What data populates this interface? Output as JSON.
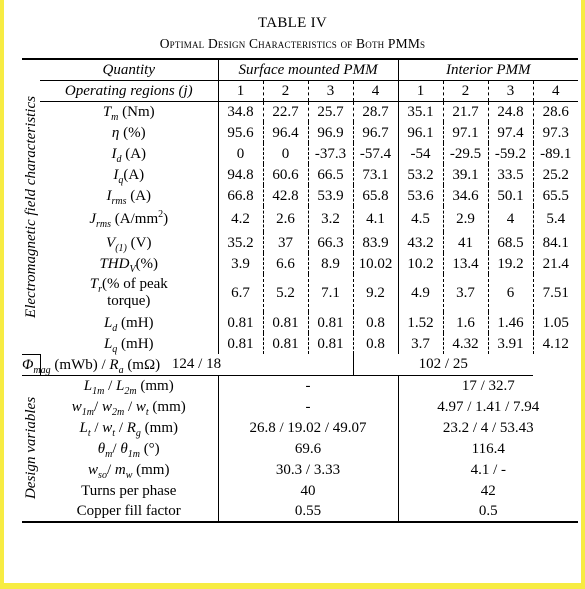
{
  "table": {
    "title": "TABLE IV",
    "caption": "Optimal Design Characteristics of Both PMMs",
    "header": {
      "quantity": "Quantity",
      "surface": "Surface mounted PMM",
      "interior": "Interior PMM",
      "regions_label": "Operating regions (j)",
      "regions": [
        "1",
        "2",
        "3",
        "4",
        "1",
        "2",
        "3",
        "4"
      ]
    },
    "sections": {
      "em": "Electromagnetic field characteristics",
      "dv": "Design variables"
    },
    "em_rows": [
      {
        "v": [
          "34.8",
          "22.7",
          "25.7",
          "28.7",
          "35.1",
          "21.7",
          "24.8",
          "28.6"
        ]
      },
      {
        "v": [
          "95.6",
          "96.4",
          "96.9",
          "96.7",
          "96.1",
          "97.1",
          "97.4",
          "97.3"
        ]
      },
      {
        "v": [
          "0",
          "0",
          "-37.3",
          "-57.4",
          "-54",
          "-29.5",
          "-59.2",
          "-89.1"
        ]
      },
      {
        "v": [
          "94.8",
          "60.6",
          "66.5",
          "73.1",
          "53.2",
          "39.1",
          "33.5",
          "25.2"
        ]
      },
      {
        "v": [
          "66.8",
          "42.8",
          "53.9",
          "65.8",
          "53.6",
          "34.6",
          "50.1",
          "65.5"
        ]
      },
      {
        "v": [
          "4.2",
          "2.6",
          "3.2",
          "4.1",
          "4.5",
          "2.9",
          "4",
          "5.4"
        ]
      },
      {
        "v": [
          "35.2",
          "37",
          "66.3",
          "83.9",
          "43.2",
          "41",
          "68.5",
          "84.1"
        ]
      },
      {
        "v": [
          "3.9",
          "6.6",
          "8.9",
          "10.02",
          "10.2",
          "13.4",
          "19.2",
          "21.4"
        ]
      },
      {
        "v": [
          "6.7",
          "5.2",
          "7.1",
          "9.2",
          "4.9",
          "3.7",
          "6",
          "7.51"
        ]
      },
      {
        "v": [
          "0.81",
          "0.81",
          "0.81",
          "0.8",
          "1.52",
          "1.6",
          "1.46",
          "1.05"
        ]
      },
      {
        "v": [
          "0.81",
          "0.81",
          "0.81",
          "0.8",
          "3.7",
          "4.32",
          "3.91",
          "4.12"
        ]
      }
    ],
    "labels": {
      "tm": {
        "sym": "T",
        "sub": "m",
        "unit": " (Nm)"
      },
      "eta": {
        "sym": "η",
        "unit": " (%)"
      },
      "id": {
        "sym": "I",
        "sub": "d",
        "unit": " (A)"
      },
      "iq": {
        "sym": "I",
        "sub": "q",
        "unit": "(A)"
      },
      "irms": {
        "sym": "I",
        "sub": "rms",
        "unit": " (A)"
      },
      "jrms": {
        "sym": "J",
        "sub": "rms",
        "unit": " (A/mm",
        "sup": "2",
        "close": ")"
      },
      "v1": {
        "sym": "V",
        "sub": "(1)",
        "unit": " (V)"
      },
      "thd": {
        "sym": "THD",
        "sub": "V",
        "unit": "(%)"
      },
      "tr_line1": {
        "sym": "T",
        "sub": "r",
        "unit": "(% of peak"
      },
      "tr_line2": "torque)",
      "ld": {
        "sym": "L",
        "sub": "d",
        "unit": " (mH)"
      },
      "lq": {
        "sym": "L",
        "sub": "q",
        "unit": " (mH)"
      },
      "phi": {
        "sym": "Φ",
        "sub": "mag",
        "mid": " (mWb) / ",
        "sym2": "R",
        "sub2": "a",
        "unit": " (mΩ)"
      },
      "l1m": {
        "a": "L",
        "as": "1m",
        "mid": " / ",
        "b": "L",
        "bs": "2m",
        "unit": " (mm)"
      },
      "w1m": {
        "a": "w",
        "as": "1m",
        "mid": "/ ",
        "b": "w",
        "bs": "2m",
        "mid2": " / ",
        "c": "w",
        "cs": "t",
        "unit": " (mm)"
      },
      "lt": {
        "a": "L",
        "as": "t",
        "mid": " / ",
        "b": "w",
        "bs": "t",
        "mid2": " / ",
        "c": "R",
        "cs": "g",
        "unit": " (mm)"
      },
      "theta": {
        "a": "θ",
        "as": "m",
        "mid": "/ ",
        "b": "θ",
        "bs": "1m",
        "unit": " (°)"
      },
      "wso": {
        "a": "w",
        "as": "so",
        "mid": "/ ",
        "b": "m",
        "bs": "w",
        "unit": " (mm)"
      },
      "turns": "Turns per phase",
      "copper": "Copper fill factor"
    },
    "phi_values": {
      "surface": "124 / 18",
      "interior": "102 / 25"
    },
    "dv_rows": [
      {
        "surface": "-",
        "interior": "17 / 32.7"
      },
      {
        "surface": "-",
        "interior": "4.97 / 1.41 / 7.94"
      },
      {
        "surface": "26.8 / 19.02 / 49.07",
        "interior": "23.2 / 4 / 53.43"
      },
      {
        "surface": "69.6",
        "interior": "116.4"
      },
      {
        "surface": "30.3 / 3.33",
        "interior": "4.1 / -"
      },
      {
        "surface": "40",
        "interior": "42"
      },
      {
        "surface": "0.55",
        "interior": "0.5"
      }
    ]
  }
}
